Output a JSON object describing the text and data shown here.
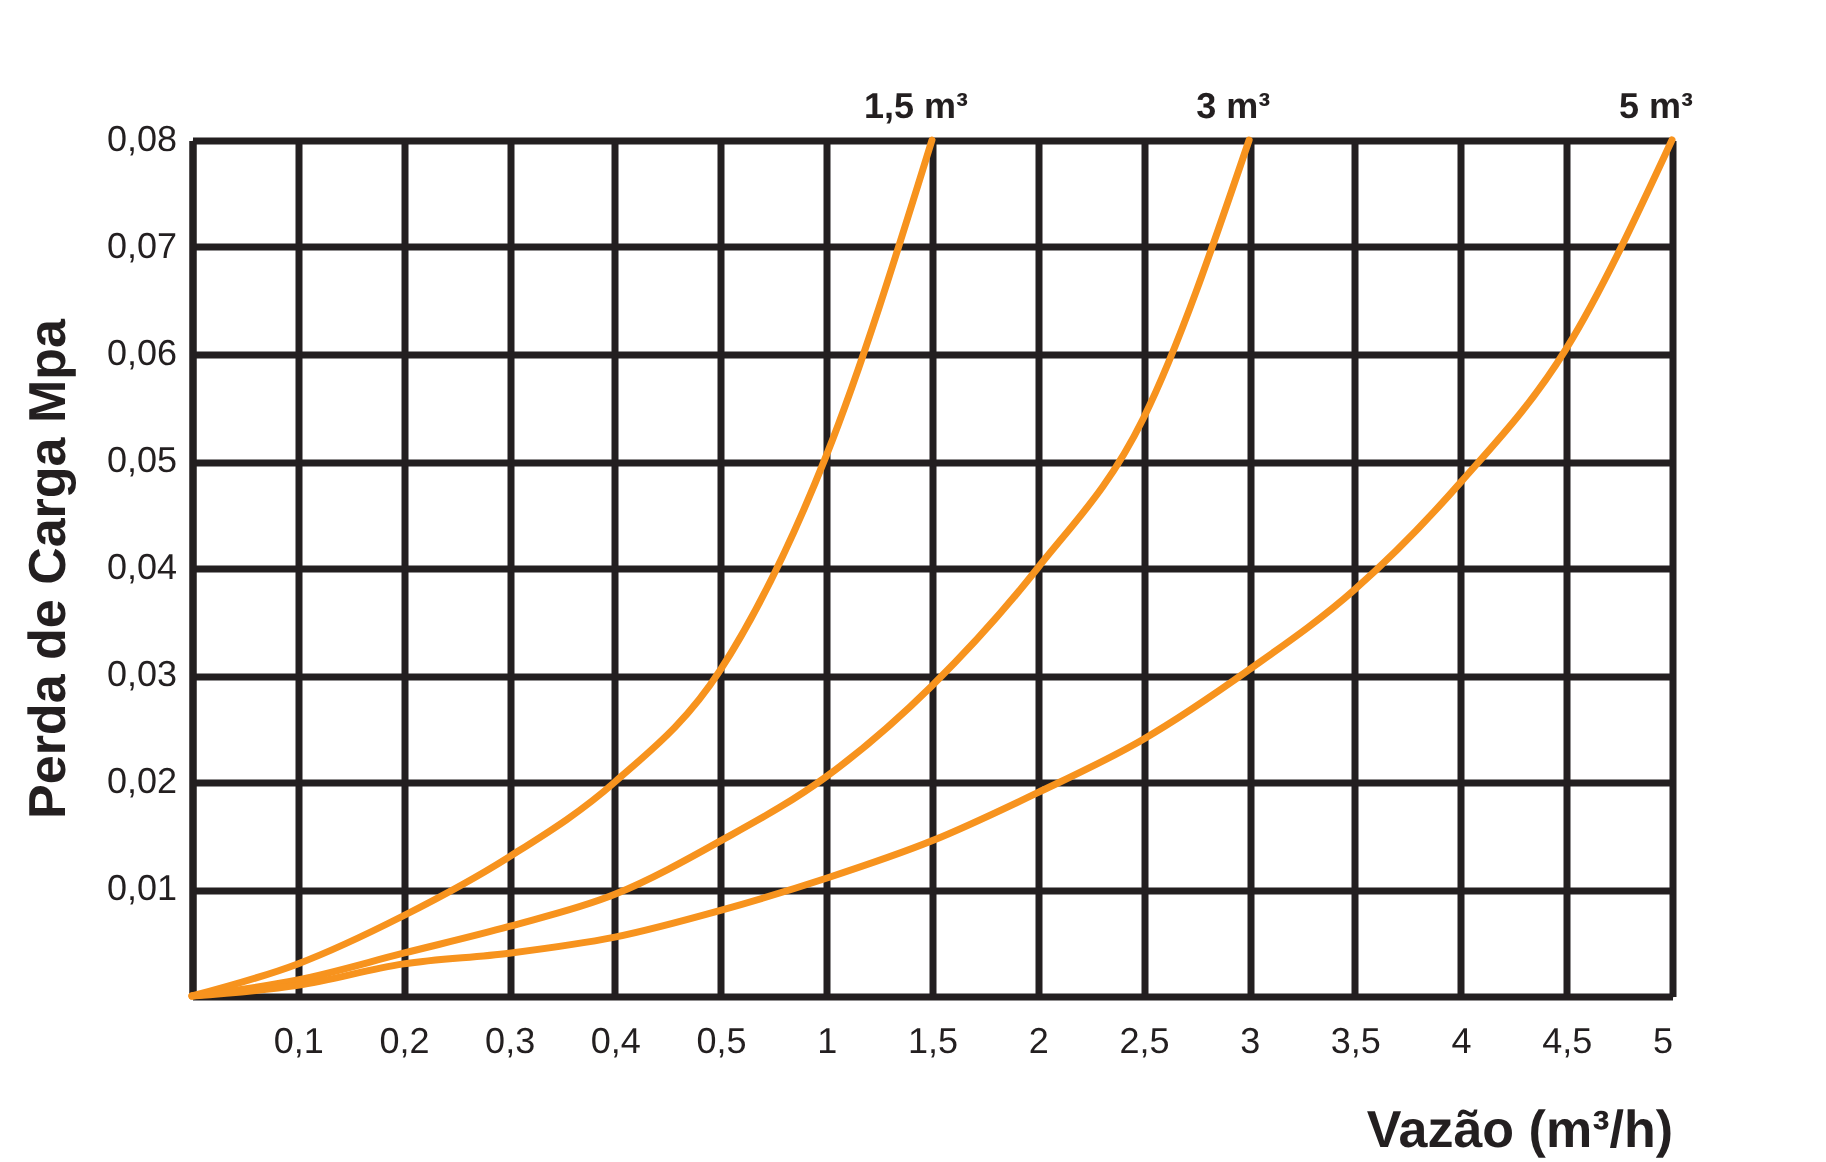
{
  "chart_data": {
    "type": "line",
    "xlabel": "Vazão (m³/h)",
    "ylabel": "Perda de Carga Mpa",
    "categories": [
      null,
      "0,1",
      "0,2",
      "0,3",
      "0,4",
      "0,5",
      "1",
      "1,5",
      "2",
      "2,5",
      "3",
      "3,5",
      "4",
      "4,5",
      "5"
    ],
    "ylim": [
      0,
      0.08
    ],
    "yticks": [
      {
        "value": 0.01,
        "label": "0,01"
      },
      {
        "value": 0.02,
        "label": "0,02"
      },
      {
        "value": 0.03,
        "label": "0,03"
      },
      {
        "value": 0.04,
        "label": "0,04"
      },
      {
        "value": 0.05,
        "label": "0,05"
      },
      {
        "value": 0.06,
        "label": "0,06"
      },
      {
        "value": 0.07,
        "label": "0,07"
      },
      {
        "value": 0.08,
        "label": "0,08"
      }
    ],
    "grid": true,
    "legend": false,
    "marker": "none",
    "line_style": "solid",
    "series": [
      {
        "name": "1,5 m³",
        "color": "#f7931e",
        "values": [
          0,
          0.003,
          0.0075,
          0.013,
          0.02,
          0.0305,
          0.0505,
          0.08,
          null,
          null,
          null,
          null,
          null,
          null,
          null
        ]
      },
      {
        "name": "3 m³",
        "color": "#f7931e",
        "values": [
          0,
          0.0015,
          0.004,
          0.0065,
          0.0095,
          0.0145,
          0.0205,
          0.029,
          0.04,
          0.054,
          0.08,
          null,
          null,
          null,
          null
        ]
      },
      {
        "name": "5 m³",
        "color": "#f7931e",
        "values": [
          0,
          0.001,
          0.003,
          0.004,
          0.0055,
          0.008,
          0.011,
          0.0145,
          0.019,
          0.024,
          0.0305,
          0.038,
          0.048,
          0.0605,
          0.08
        ]
      }
    ]
  }
}
